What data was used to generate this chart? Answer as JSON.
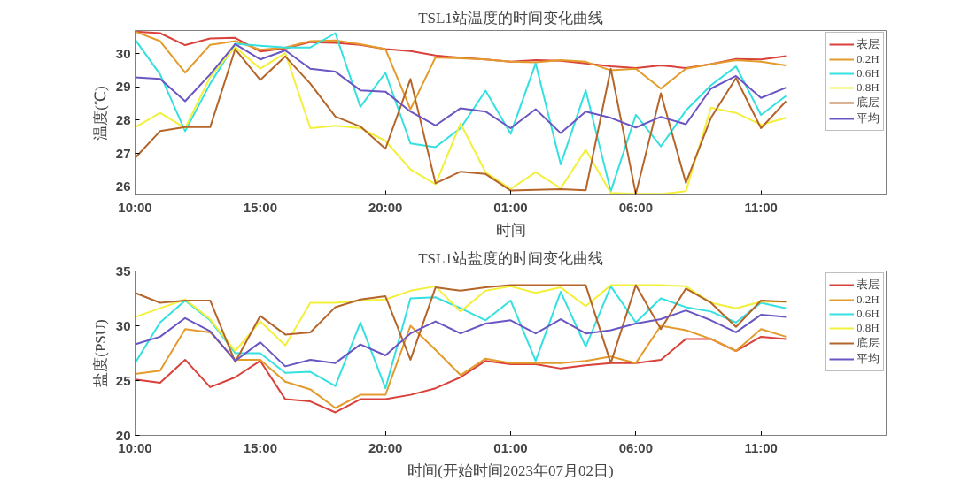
{
  "chart_data": [
    {
      "type": "line",
      "title": "TSL1站温度的时间变化曲线",
      "xlabel": "时间",
      "ylabel": "温度(℃)",
      "legend": "top right",
      "x": [
        "2023-07-02T10:00",
        "2023-07-02T11:00",
        "2023-07-02T12:00",
        "2023-07-02T13:00",
        "2023-07-02T14:00",
        "2023-07-02T15:00",
        "2023-07-02T16:00",
        "2023-07-02T17:00",
        "2023-07-02T18:00",
        "2023-07-02T19:00",
        "2023-07-02T20:00",
        "2023-07-02T21:00",
        "2023-07-02T22:00",
        "2023-07-02T23:00",
        "2023-07-03T00:00",
        "2023-07-03T01:00",
        "2023-07-03T02:00",
        "2023-07-03T03:00",
        "2023-07-03T04:00",
        "2023-07-03T05:00",
        "2023-07-03T06:00",
        "2023-07-03T07:00",
        "2023-07-03T08:00",
        "2023-07-03T09:00",
        "2023-07-03T10:00",
        "2023-07-03T11:00",
        "2023-07-03T12:00"
      ],
      "xlim": [
        "2023-07-02T10:00",
        "2023-07-03T16:00"
      ],
      "ylim": [
        25.75,
        30.7
      ],
      "xticks": [
        {
          "value": "2023-07-02T10:00",
          "label": "10:00"
        },
        {
          "value": "2023-07-02T15:00",
          "label": "15:00"
        },
        {
          "value": "2023-07-02T20:00",
          "label": "20:00"
        },
        {
          "value": "2023-07-03T01:00",
          "label": "01:00"
        },
        {
          "value": "2023-07-03T06:00",
          "label": "06:00"
        },
        {
          "value": "2023-07-03T11:00",
          "label": "11:00"
        }
      ],
      "yticks": [
        26,
        27,
        28,
        29,
        30
      ],
      "series": [
        {
          "name": "表层",
          "color": "#d9413a",
          "values": [
            30.67,
            30.62,
            30.26,
            30.46,
            30.48,
            30.07,
            30.16,
            30.35,
            30.33,
            30.27,
            30.14,
            30.08,
            29.95,
            29.88,
            29.83,
            29.76,
            29.81,
            29.79,
            29.71,
            29.62,
            29.57,
            29.65,
            29.57,
            29.69,
            29.84,
            29.83,
            29.93
          ]
        },
        {
          "name": "0.2H",
          "color": "#e39b2c",
          "values": [
            30.67,
            30.38,
            29.43,
            30.27,
            30.38,
            30.12,
            30.19,
            30.38,
            30.4,
            30.29,
            30.14,
            28.33,
            29.89,
            29.86,
            29.83,
            29.76,
            29.74,
            29.81,
            29.76,
            29.5,
            29.55,
            28.95,
            29.55,
            29.69,
            29.81,
            29.76,
            29.65
          ]
        },
        {
          "name": "0.6H",
          "color": "#34e0e0",
          "values": [
            30.43,
            29.38,
            27.67,
            29.1,
            30.3,
            30.24,
            30.19,
            30.19,
            30.62,
            28.4,
            29.43,
            27.3,
            27.19,
            27.76,
            28.89,
            27.59,
            29.71,
            26.67,
            28.9,
            25.86,
            28.16,
            27.21,
            28.29,
            29.05,
            29.62,
            28.16,
            28.73
          ]
        },
        {
          "name": "0.8H",
          "color": "#f2f03a",
          "values": [
            27.78,
            28.22,
            27.76,
            29.3,
            30.21,
            29.55,
            30.02,
            27.76,
            27.83,
            27.76,
            27.38,
            26.52,
            26.07,
            27.9,
            26.43,
            25.93,
            26.43,
            25.95,
            27.11,
            25.81,
            25.78,
            25.78,
            25.86,
            28.38,
            28.22,
            27.86,
            28.07
          ]
        },
        {
          "name": "底层",
          "color": "#b5652a",
          "values": [
            26.86,
            27.67,
            27.79,
            27.79,
            30.14,
            29.21,
            29.92,
            29.1,
            28.11,
            27.81,
            27.14,
            29.24,
            26.1,
            26.45,
            26.38,
            25.88,
            25.9,
            25.92,
            25.89,
            29.55,
            25.78,
            28.81,
            26.11,
            28.07,
            29.27,
            27.76,
            28.57
          ]
        },
        {
          "name": "平均",
          "color": "#6a55c2",
          "values": [
            29.29,
            29.24,
            28.57,
            29.38,
            30.29,
            29.83,
            30.1,
            29.55,
            29.46,
            28.9,
            28.86,
            28.26,
            27.84,
            28.36,
            28.26,
            27.76,
            28.33,
            27.61,
            28.26,
            28.07,
            27.78,
            28.1,
            27.88,
            28.95,
            29.33,
            28.67,
            28.98
          ]
        }
      ]
    },
    {
      "type": "line",
      "title": "TSL1站盐度的时间变化曲线",
      "xlabel": "时间(开始时间2023年07月02日)",
      "ylabel": "盐度(PSU)",
      "legend": "top right",
      "x": [
        "2023-07-02T10:00",
        "2023-07-02T11:00",
        "2023-07-02T12:00",
        "2023-07-02T13:00",
        "2023-07-02T14:00",
        "2023-07-02T15:00",
        "2023-07-02T16:00",
        "2023-07-02T17:00",
        "2023-07-02T18:00",
        "2023-07-02T19:00",
        "2023-07-02T20:00",
        "2023-07-02T21:00",
        "2023-07-02T22:00",
        "2023-07-02T23:00",
        "2023-07-03T00:00",
        "2023-07-03T01:00",
        "2023-07-03T02:00",
        "2023-07-03T03:00",
        "2023-07-03T04:00",
        "2023-07-03T05:00",
        "2023-07-03T06:00",
        "2023-07-03T07:00",
        "2023-07-03T08:00",
        "2023-07-03T09:00",
        "2023-07-03T10:00",
        "2023-07-03T11:00",
        "2023-07-03T12:00"
      ],
      "xlim": [
        "2023-07-02T10:00",
        "2023-07-03T16:00"
      ],
      "ylim": [
        20,
        35
      ],
      "xticks": [
        {
          "value": "2023-07-02T10:00",
          "label": "10:00"
        },
        {
          "value": "2023-07-02T15:00",
          "label": "15:00"
        },
        {
          "value": "2023-07-02T20:00",
          "label": "20:00"
        },
        {
          "value": "2023-07-03T01:00",
          "label": "01:00"
        },
        {
          "value": "2023-07-03T06:00",
          "label": "06:00"
        },
        {
          "value": "2023-07-03T11:00",
          "label": "11:00"
        }
      ],
      "yticks": [
        20,
        25,
        30,
        35
      ],
      "series": [
        {
          "name": "表层",
          "color": "#d9413a",
          "values": [
            25.1,
            24.8,
            26.9,
            24.4,
            25.3,
            26.8,
            23.3,
            23.1,
            22.1,
            23.3,
            23.3,
            23.7,
            24.3,
            25.3,
            26.8,
            26.5,
            26.5,
            26.1,
            26.4,
            26.6,
            26.6,
            26.9,
            28.8,
            28.8,
            27.7,
            29.0,
            28.8
          ]
        },
        {
          "name": "0.2H",
          "color": "#e39b2c",
          "values": [
            25.6,
            25.9,
            29.7,
            29.4,
            26.9,
            26.9,
            24.9,
            24.2,
            22.5,
            23.7,
            23.7,
            30.0,
            27.8,
            25.5,
            27.0,
            26.6,
            26.6,
            26.6,
            26.8,
            27.2,
            26.6,
            30.0,
            29.6,
            28.8,
            27.7,
            29.7,
            29.0
          ]
        },
        {
          "name": "0.6H",
          "color": "#34e0e0",
          "values": [
            26.6,
            30.3,
            32.3,
            30.5,
            27.5,
            27.5,
            25.7,
            25.8,
            24.5,
            30.3,
            24.3,
            32.5,
            32.6,
            31.6,
            30.5,
            32.3,
            26.8,
            33.1,
            28.1,
            33.6,
            30.3,
            32.5,
            31.7,
            31.3,
            30.3,
            32.1,
            31.6
          ]
        },
        {
          "name": "0.8H",
          "color": "#f2f03a",
          "values": [
            30.8,
            31.6,
            32.4,
            30.6,
            27.7,
            30.4,
            28.2,
            32.1,
            32.1,
            32.3,
            32.4,
            33.2,
            33.6,
            31.3,
            33.2,
            33.6,
            33.0,
            33.5,
            31.8,
            33.7,
            33.7,
            33.7,
            33.6,
            32.1,
            31.6,
            32.2,
            32.2
          ]
        },
        {
          "name": "底层",
          "color": "#b5652a",
          "values": [
            33.0,
            32.1,
            32.3,
            32.3,
            26.7,
            30.9,
            29.2,
            29.4,
            31.7,
            32.4,
            32.7,
            26.9,
            33.5,
            33.2,
            33.5,
            33.7,
            33.7,
            33.7,
            33.7,
            26.6,
            33.7,
            29.7,
            33.4,
            32.1,
            29.9,
            32.3,
            32.2
          ]
        },
        {
          "name": "平均",
          "color": "#6a55c2",
          "values": [
            28.3,
            29.0,
            30.7,
            29.5,
            26.8,
            28.5,
            26.3,
            26.9,
            26.6,
            28.3,
            27.3,
            29.3,
            30.4,
            29.3,
            30.2,
            30.5,
            29.3,
            30.6,
            29.3,
            29.6,
            30.2,
            30.6,
            31.4,
            30.5,
            29.4,
            31.0,
            30.8
          ]
        }
      ]
    }
  ]
}
